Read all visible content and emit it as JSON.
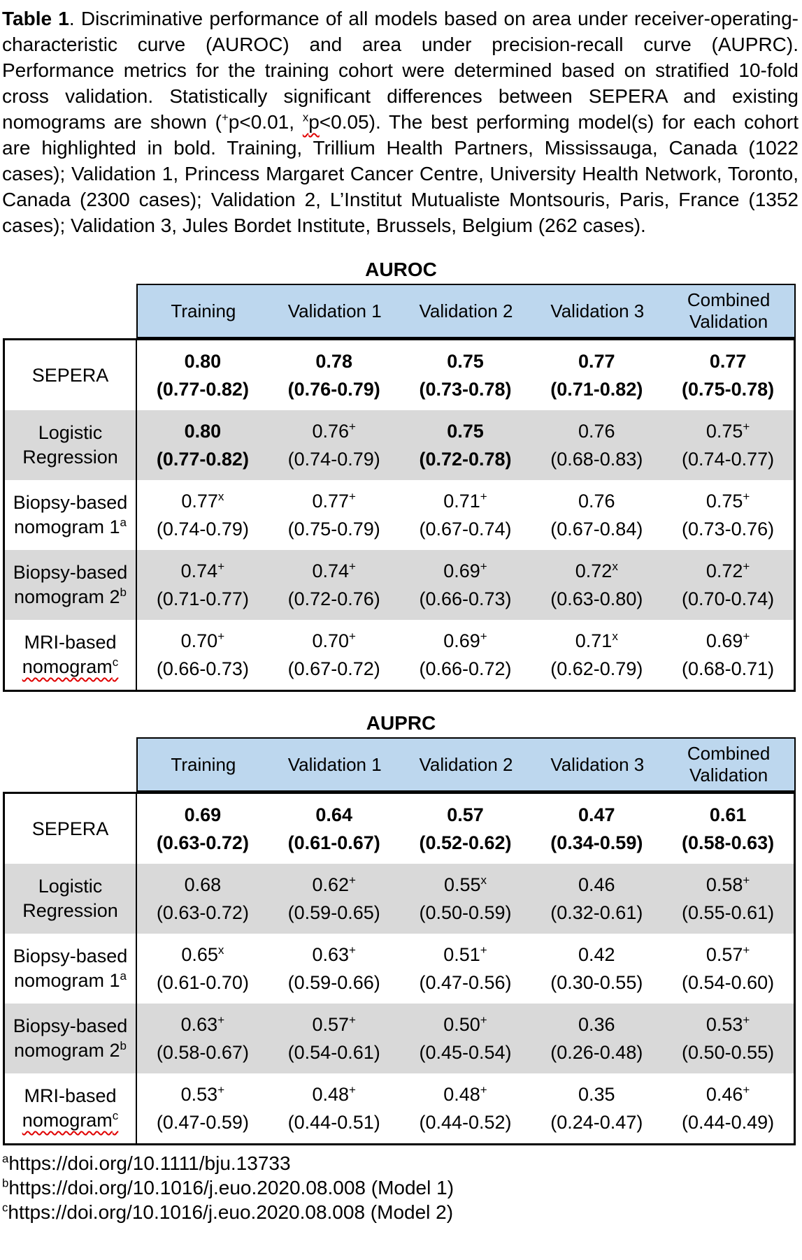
{
  "caption": {
    "title_bold": "Table 1",
    "after_title": ". Discriminative performance of all models based on area under receiver-operating-characteristic curve (AUROC) and area under precision-recall curve (AUPRC). Performance metrics for the training cohort were determined based on stratified 10-fold cross validation. Statistically significant differences between SEPERA and existing nomograms are shown (",
    "sig_plus_sup": "+",
    "between_sigs": "p<0.01, ",
    "sig_x_sup": "x",
    "sig_x_word": "p",
    "after_sigs": "<0.05). The best performing model(s) for each cohort are highlighted in bold. Training, Trillium Health Partners, Mississauga, Canada (1022 cases); Validation 1, Princess Margaret Cancer Centre, University Health Network, Toronto, Canada (2300 cases); Validation 2, L’Institut Mutualiste Montsouris, Paris, France (1352 cases); Validation 3, Jules Bordet Institute, Brussels, Belgium (262 cases)."
  },
  "colors": {
    "header_bg": "#bdd7ee",
    "row_alt_bg": "#d9d9d9",
    "squiggle": "#e00000",
    "border": "#000000"
  },
  "tables": [
    {
      "title": "AUROC",
      "columns": [
        "Training",
        "Validation 1",
        "Validation 2",
        "Validation 3",
        "Combined Validation"
      ],
      "rows": [
        {
          "label_line1": "SEPERA",
          "label_line2": "",
          "label_sup": "",
          "label_squiggle": false,
          "shaded": false,
          "cells": [
            {
              "value": "0.80",
              "sup": "",
              "ci": "(0.77-0.82)",
              "bold": true
            },
            {
              "value": "0.78",
              "sup": "",
              "ci": "(0.76-0.79)",
              "bold": true
            },
            {
              "value": "0.75",
              "sup": "",
              "ci": "(0.73-0.78)",
              "bold": true
            },
            {
              "value": "0.77",
              "sup": "",
              "ci": "(0.71-0.82)",
              "bold": true
            },
            {
              "value": "0.77",
              "sup": "",
              "ci": "(0.75-0.78)",
              "bold": true
            }
          ]
        },
        {
          "label_line1": "Logistic",
          "label_line2": "Regression",
          "label_sup": "",
          "label_squiggle": false,
          "shaded": true,
          "cells": [
            {
              "value": "0.80",
              "sup": "",
              "ci": "(0.77-0.82)",
              "bold": true
            },
            {
              "value": "0.76",
              "sup": "+",
              "ci": "(0.74-0.79)",
              "bold": false
            },
            {
              "value": "0.75",
              "sup": "",
              "ci": "(0.72-0.78)",
              "bold": true
            },
            {
              "value": "0.76",
              "sup": "",
              "ci": "(0.68-0.83)",
              "bold": false
            },
            {
              "value": "0.75",
              "sup": "+",
              "ci": "(0.74-0.77)",
              "bold": false
            }
          ]
        },
        {
          "label_line1": "Biopsy-based",
          "label_line2": "nomogram 1",
          "label_sup": "a",
          "label_squiggle": false,
          "shaded": false,
          "cells": [
            {
              "value": "0.77",
              "sup": "x",
              "ci": "(0.74-0.79)",
              "bold": false
            },
            {
              "value": "0.77",
              "sup": "+",
              "ci": "(0.75-0.79)",
              "bold": false
            },
            {
              "value": "0.71",
              "sup": "+",
              "ci": "(0.67-0.74)",
              "bold": false
            },
            {
              "value": "0.76",
              "sup": "",
              "ci": "(0.67-0.84)",
              "bold": false
            },
            {
              "value": "0.75",
              "sup": "+",
              "ci": "(0.73-0.76)",
              "bold": false
            }
          ]
        },
        {
          "label_line1": "Biopsy-based",
          "label_line2": "nomogram 2",
          "label_sup": "b",
          "label_squiggle": false,
          "shaded": true,
          "cells": [
            {
              "value": "0.74",
              "sup": "+",
              "ci": "(0.71-0.77)",
              "bold": false
            },
            {
              "value": "0.74",
              "sup": "+",
              "ci": "(0.72-0.76)",
              "bold": false
            },
            {
              "value": "0.69",
              "sup": "+",
              "ci": "(0.66-0.73)",
              "bold": false
            },
            {
              "value": "0.72",
              "sup": "x",
              "ci": "(0.63-0.80)",
              "bold": false
            },
            {
              "value": "0.72",
              "sup": "+",
              "ci": "(0.70-0.74)",
              "bold": false
            }
          ]
        },
        {
          "label_line1": "MRI-based",
          "label_line2": "nomogram",
          "label_sup": "c",
          "label_squiggle": true,
          "shaded": false,
          "cells": [
            {
              "value": "0.70",
              "sup": "+",
              "ci": "(0.66-0.73)",
              "bold": false
            },
            {
              "value": "0.70",
              "sup": "+",
              "ci": "(0.67-0.72)",
              "bold": false
            },
            {
              "value": "0.69",
              "sup": "+",
              "ci": "(0.66-0.72)",
              "bold": false
            },
            {
              "value": "0.71",
              "sup": "x",
              "ci": "(0.62-0.79)",
              "bold": false
            },
            {
              "value": "0.69",
              "sup": "+",
              "ci": "(0.68-0.71)",
              "bold": false
            }
          ]
        }
      ]
    },
    {
      "title": "AUPRC",
      "columns": [
        "Training",
        "Validation 1",
        "Validation 2",
        "Validation 3",
        "Combined Validation"
      ],
      "rows": [
        {
          "label_line1": "SEPERA",
          "label_line2": "",
          "label_sup": "",
          "label_squiggle": false,
          "shaded": false,
          "cells": [
            {
              "value": "0.69",
              "sup": "",
              "ci": "(0.63-0.72)",
              "bold": true
            },
            {
              "value": "0.64",
              "sup": "",
              "ci": "(0.61-0.67)",
              "bold": true
            },
            {
              "value": "0.57",
              "sup": "",
              "ci": "(0.52-0.62)",
              "bold": true
            },
            {
              "value": "0.47",
              "sup": "",
              "ci": "(0.34-0.59)",
              "bold": true
            },
            {
              "value": "0.61",
              "sup": "",
              "ci": "(0.58-0.63)",
              "bold": true
            }
          ]
        },
        {
          "label_line1": "Logistic",
          "label_line2": "Regression",
          "label_sup": "",
          "label_squiggle": false,
          "shaded": true,
          "cells": [
            {
              "value": "0.68",
              "sup": "",
              "ci": "(0.63-0.72)",
              "bold": false
            },
            {
              "value": "0.62",
              "sup": "+",
              "ci": "(0.59-0.65)",
              "bold": false
            },
            {
              "value": "0.55",
              "sup": "x",
              "ci": "(0.50-0.59)",
              "bold": false
            },
            {
              "value": "0.46",
              "sup": "",
              "ci": "(0.32-0.61)",
              "bold": false
            },
            {
              "value": "0.58",
              "sup": "+",
              "ci": "(0.55-0.61)",
              "bold": false
            }
          ]
        },
        {
          "label_line1": "Biopsy-based",
          "label_line2": "nomogram 1",
          "label_sup": "a",
          "label_squiggle": false,
          "shaded": false,
          "cells": [
            {
              "value": "0.65",
              "sup": "x",
              "ci": "(0.61-0.70)",
              "bold": false
            },
            {
              "value": "0.63",
              "sup": "+",
              "ci": "(0.59-0.66)",
              "bold": false
            },
            {
              "value": "0.51",
              "sup": "+",
              "ci": "(0.47-0.56)",
              "bold": false
            },
            {
              "value": "0.42",
              "sup": "",
              "ci": "(0.30-0.55)",
              "bold": false
            },
            {
              "value": "0.57",
              "sup": "+",
              "ci": "(0.54-0.60)",
              "bold": false
            }
          ]
        },
        {
          "label_line1": "Biopsy-based",
          "label_line2": "nomogram 2",
          "label_sup": "b",
          "label_squiggle": false,
          "shaded": true,
          "cells": [
            {
              "value": "0.63",
              "sup": "+",
              "ci": "(0.58-0.67)",
              "bold": false
            },
            {
              "value": "0.57",
              "sup": "+",
              "ci": "(0.54-0.61)",
              "bold": false
            },
            {
              "value": "0.50",
              "sup": "+",
              "ci": "(0.45-0.54)",
              "bold": false
            },
            {
              "value": "0.36",
              "sup": "",
              "ci": "(0.26-0.48)",
              "bold": false
            },
            {
              "value": "0.53",
              "sup": "+",
              "ci": "(0.50-0.55)",
              "bold": false
            }
          ]
        },
        {
          "label_line1": "MRI-based",
          "label_line2": "nomogram",
          "label_sup": "c",
          "label_squiggle": true,
          "shaded": false,
          "cells": [
            {
              "value": "0.53",
              "sup": "+",
              "ci": "(0.47-0.59)",
              "bold": false
            },
            {
              "value": "0.48",
              "sup": "+",
              "ci": "(0.44-0.51)",
              "bold": false
            },
            {
              "value": "0.48",
              "sup": "+",
              "ci": "(0.44-0.52)",
              "bold": false
            },
            {
              "value": "0.35",
              "sup": "",
              "ci": "(0.24-0.47)",
              "bold": false
            },
            {
              "value": "0.46",
              "sup": "+",
              "ci": "(0.44-0.49)",
              "bold": false
            }
          ]
        }
      ]
    }
  ],
  "footnotes": [
    {
      "sup": "a",
      "text": "https://doi.org/10.1111/bju.13733"
    },
    {
      "sup": "b",
      "text": "https://doi.org/10.1016/j.euo.2020.08.008 (Model 1)"
    },
    {
      "sup": "c",
      "text": "https://doi.org/10.1016/j.euo.2020.08.008 (Model 2)"
    }
  ]
}
